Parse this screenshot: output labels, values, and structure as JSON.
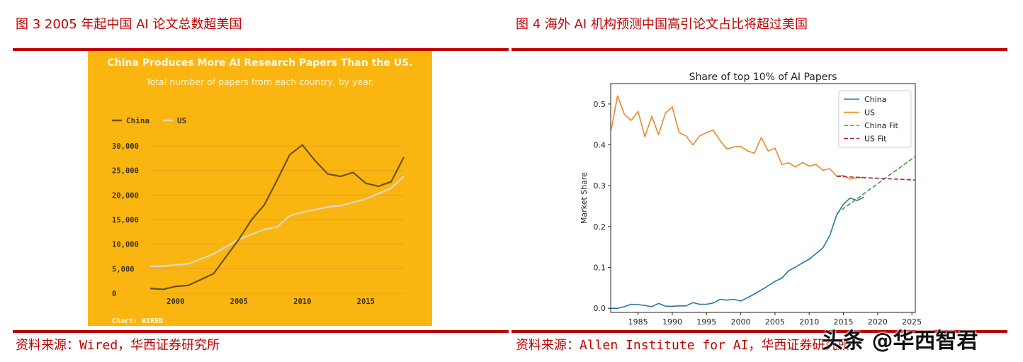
{
  "figure3": {
    "title": "图 3 2005 年起中国 AI 论文总数超美国",
    "source": "资料来源：Wired，华西证券研究所"
  },
  "figure4": {
    "title": "图 4 海外 AI 机构预测中国高引论文占比将超过美国",
    "source": "资料来源：Allen Institute for AI，华西证券研究所"
  },
  "watermark": "头条 @华西智君",
  "colors": {
    "red": "#c00000",
    "wired_bg": "#fbb511",
    "wired_china": "#6b5418",
    "wired_us": "#d9d9c8",
    "china": "#2a75a8",
    "us": "#e88a2d",
    "china_fit": "#3e9a3e",
    "us_fit": "#a9263a"
  },
  "chart_data": [
    {
      "type": "line",
      "title": "China Produces More AI Research Papers Than the US.",
      "subtitle": "Total number of papers from each country, by year.",
      "credit": "Chart: WIRED",
      "xlabel": "",
      "ylabel": "",
      "xlim": [
        1998,
        2018
      ],
      "ylim": [
        0,
        30000
      ],
      "x_ticks": [
        2000,
        2005,
        2010,
        2015
      ],
      "x_tick_labels": [
        "2000",
        "2005",
        "2010",
        "2015"
      ],
      "y_ticks": [
        0,
        5000,
        10000,
        15000,
        20000,
        25000,
        30000
      ],
      "y_tick_labels": [
        "0",
        "5,000",
        "10,000",
        "15,000",
        "20,000",
        "25,000",
        "30,000"
      ],
      "legend_position": "top-left",
      "grid": true,
      "series": [
        {
          "name": "China",
          "x": [
            1998,
            1999,
            2000,
            2001,
            2002,
            2003,
            2004,
            2005,
            2006,
            2007,
            2008,
            2009,
            2010,
            2011,
            2012,
            2013,
            2014,
            2015,
            2016,
            2017,
            2018
          ],
          "values": [
            1000,
            800,
            1400,
            1600,
            2800,
            4000,
            7500,
            11000,
            15000,
            18000,
            23000,
            28200,
            30200,
            27000,
            24300,
            23800,
            24600,
            22400,
            21800,
            22700,
            27700
          ]
        },
        {
          "name": "US",
          "x": [
            1998,
            1999,
            2000,
            2001,
            2002,
            2003,
            2004,
            2005,
            2006,
            2007,
            2008,
            2009,
            2010,
            2011,
            2012,
            2013,
            2014,
            2015,
            2016,
            2017,
            2018
          ],
          "values": [
            5500,
            5500,
            5800,
            6000,
            7000,
            8000,
            9500,
            11000,
            12000,
            13000,
            13500,
            15800,
            16500,
            17000,
            17600,
            17800,
            18500,
            19200,
            20300,
            21400,
            23800
          ]
        }
      ]
    },
    {
      "type": "line",
      "title": "Share of top 10% of AI Papers",
      "xlabel": "",
      "ylabel": "Market Share",
      "xlim": [
        1981,
        2025.5
      ],
      "ylim": [
        -0.01,
        0.55
      ],
      "x_ticks": [
        1985,
        1990,
        1995,
        2000,
        2005,
        2010,
        2015,
        2020,
        2025
      ],
      "x_tick_labels": [
        "1985",
        "1990",
        "1995",
        "2000",
        "2005",
        "2010",
        "2015",
        "2020",
        "2025"
      ],
      "y_ticks": [
        0.0,
        0.1,
        0.2,
        0.3,
        0.4,
        0.5
      ],
      "y_tick_labels": [
        "0.0",
        "0.1",
        "0.2",
        "0.3",
        "0.4",
        "0.5"
      ],
      "legend_position": "top-right",
      "grid": false,
      "series": [
        {
          "name": "China",
          "style": "solid",
          "x": [
            1981,
            1982,
            1983,
            1984,
            1985,
            1986,
            1987,
            1988,
            1989,
            1990,
            1991,
            1992,
            1993,
            1994,
            1995,
            1996,
            1997,
            1998,
            1999,
            2000,
            2001,
            2002,
            2003,
            2004,
            2005,
            2006,
            2007,
            2008,
            2009,
            2010,
            2011,
            2012,
            2013,
            2014,
            2015,
            2016,
            2017,
            2018
          ],
          "values": [
            0.0,
            0.0,
            0.004,
            0.01,
            0.009,
            0.007,
            0.004,
            0.012,
            0.005,
            0.005,
            0.006,
            0.006,
            0.014,
            0.01,
            0.01,
            0.013,
            0.022,
            0.02,
            0.022,
            0.018,
            0.026,
            0.035,
            0.045,
            0.055,
            0.066,
            0.074,
            0.092,
            0.101,
            0.111,
            0.12,
            0.134,
            0.148,
            0.178,
            0.228,
            0.255,
            0.27,
            0.264,
            0.272
          ]
        },
        {
          "name": "US",
          "style": "solid",
          "x": [
            1981,
            1982,
            1983,
            1984,
            1985,
            1986,
            1987,
            1988,
            1989,
            1990,
            1991,
            1992,
            1993,
            1994,
            1995,
            1996,
            1997,
            1998,
            1999,
            2000,
            2001,
            2002,
            2003,
            2004,
            2005,
            2006,
            2007,
            2008,
            2009,
            2010,
            2011,
            2012,
            2013,
            2014,
            2015,
            2016,
            2017,
            2018
          ],
          "values": [
            0.43,
            0.52,
            0.475,
            0.46,
            0.482,
            0.42,
            0.47,
            0.425,
            0.478,
            0.493,
            0.43,
            0.422,
            0.4,
            0.422,
            0.43,
            0.436,
            0.41,
            0.39,
            0.395,
            0.396,
            0.385,
            0.38,
            0.418,
            0.385,
            0.392,
            0.352,
            0.356,
            0.346,
            0.357,
            0.348,
            0.352,
            0.338,
            0.342,
            0.324,
            0.325,
            0.316,
            0.32,
            0.32
          ]
        },
        {
          "name": "China Fit",
          "style": "dashed",
          "x": [
            2014,
            2025.5
          ],
          "values": [
            0.232,
            0.372
          ]
        },
        {
          "name": "US Fit",
          "style": "dashed",
          "x": [
            2014,
            2025.5
          ],
          "values": [
            0.323,
            0.314
          ]
        }
      ]
    }
  ]
}
